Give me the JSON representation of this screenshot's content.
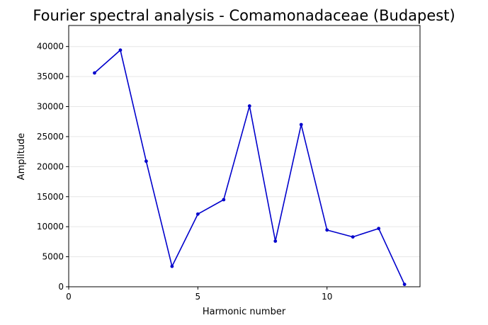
{
  "chart_data": {
    "type": "line",
    "title": "Fourier spectral analysis - Comamonadaceae (Budapest)",
    "xlabel": "Harmonic number",
    "ylabel": "Amplitude",
    "xlim": [
      0,
      13.6
    ],
    "ylim": [
      0,
      43500
    ],
    "xticks": [
      0,
      5,
      10
    ],
    "yticks": [
      0,
      5000,
      10000,
      15000,
      20000,
      25000,
      30000,
      35000,
      40000
    ],
    "grid": "horizontal",
    "legend": "none",
    "color": "#0000cc",
    "series": [
      {
        "x": [
          1,
          2,
          3,
          4,
          5,
          6,
          7,
          8,
          9,
          10,
          11,
          12,
          13
        ],
        "values": [
          35600,
          39400,
          20900,
          3400,
          12100,
          14500,
          30100,
          7600,
          27000,
          9450,
          8300,
          9700,
          400
        ]
      }
    ]
  }
}
